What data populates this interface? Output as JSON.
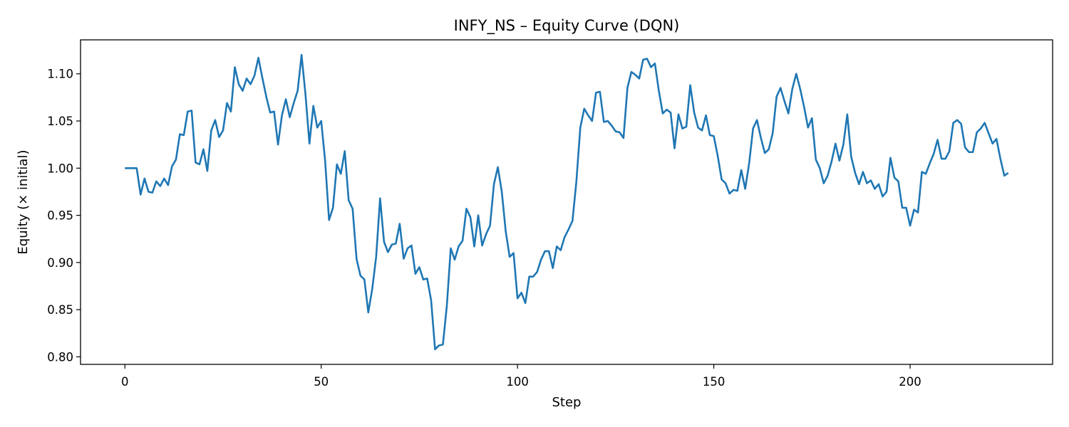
{
  "chart_data": {
    "type": "line",
    "title": "INFY_NS – Equity Curve (DQN)",
    "xlabel": "Step",
    "ylabel": "Equity (× initial)",
    "xlim": [
      -11.3,
      236.3
    ],
    "ylim": [
      0.792,
      1.136
    ],
    "xticks": [
      0,
      50,
      100,
      150,
      200
    ],
    "yticks": [
      0.8,
      0.85,
      0.9,
      0.95,
      1.0,
      1.05,
      1.1
    ],
    "grid": false,
    "legend": "none",
    "series": [
      {
        "color": "#1f77b4",
        "x": [
          0,
          1,
          2,
          3,
          4,
          5,
          6,
          7,
          8,
          9,
          10,
          11,
          12,
          13,
          14,
          15,
          16,
          17,
          18,
          19,
          20,
          21,
          22,
          23,
          24,
          25,
          26,
          27,
          28,
          29,
          30,
          31,
          32,
          33,
          34,
          35,
          36,
          37,
          38,
          39,
          40,
          41,
          42,
          43,
          44,
          45,
          46,
          47,
          48,
          49,
          50,
          51,
          52,
          53,
          54,
          55,
          56,
          57,
          58,
          59,
          60,
          61,
          62,
          63,
          64,
          65,
          66,
          67,
          68,
          69,
          70,
          71,
          72,
          73,
          74,
          75,
          76,
          77,
          78,
          79,
          80,
          81,
          82,
          83,
          84,
          85,
          86,
          87,
          88,
          89,
          90,
          91,
          92,
          93,
          94,
          95,
          96,
          97,
          98,
          99,
          100,
          101,
          102,
          103,
          104,
          105,
          106,
          107,
          108,
          109,
          110,
          111,
          112,
          113,
          114,
          115,
          116,
          117,
          118,
          119,
          120,
          121,
          122,
          123,
          124,
          125,
          126,
          127,
          128,
          129,
          130,
          131,
          132,
          133,
          134,
          135,
          136,
          137,
          138,
          139,
          140,
          141,
          142,
          143,
          144,
          145,
          146,
          147,
          148,
          149,
          150,
          151,
          152,
          153,
          154,
          155,
          156,
          157,
          158,
          159,
          160,
          161,
          162,
          163,
          164,
          165,
          166,
          167,
          168,
          169,
          170,
          171,
          172,
          173,
          174,
          175,
          176,
          177,
          178,
          179,
          180,
          181,
          182,
          183,
          184,
          185,
          186,
          187,
          188,
          189,
          190,
          191,
          192,
          193,
          194,
          195,
          196,
          197,
          198,
          199,
          200,
          201,
          202,
          203,
          204,
          205,
          206,
          207,
          208,
          209,
          210,
          211,
          212,
          213,
          214,
          215,
          216,
          217,
          218,
          219,
          220,
          221,
          222,
          223,
          224,
          225
        ],
        "values": [
          1.0,
          1.0,
          1.0,
          1.0,
          0.972,
          0.989,
          0.975,
          0.974,
          0.986,
          0.981,
          0.989,
          0.982,
          1.002,
          1.009,
          1.036,
          1.035,
          1.06,
          1.061,
          1.006,
          1.004,
          1.02,
          0.997,
          1.04,
          1.051,
          1.033,
          1.04,
          1.069,
          1.06,
          1.107,
          1.089,
          1.082,
          1.095,
          1.089,
          1.098,
          1.117,
          1.096,
          1.076,
          1.059,
          1.06,
          1.025,
          1.056,
          1.073,
          1.054,
          1.069,
          1.082,
          1.12,
          1.078,
          1.026,
          1.066,
          1.043,
          1.05,
          1.008,
          0.945,
          0.958,
          1.004,
          0.994,
          1.018,
          0.966,
          0.957,
          0.904,
          0.886,
          0.882,
          0.847,
          0.872,
          0.906,
          0.968,
          0.922,
          0.911,
          0.919,
          0.92,
          0.941,
          0.904,
          0.915,
          0.918,
          0.888,
          0.895,
          0.882,
          0.883,
          0.86,
          0.808,
          0.812,
          0.813,
          0.854,
          0.915,
          0.903,
          0.917,
          0.923,
          0.957,
          0.948,
          0.917,
          0.95,
          0.918,
          0.93,
          0.939,
          0.983,
          1.001,
          0.975,
          0.933,
          0.906,
          0.91,
          0.862,
          0.868,
          0.857,
          0.885,
          0.885,
          0.89,
          0.903,
          0.912,
          0.912,
          0.894,
          0.917,
          0.913,
          0.927,
          0.935,
          0.944,
          0.986,
          1.043,
          1.063,
          1.056,
          1.05,
          1.08,
          1.081,
          1.049,
          1.05,
          1.045,
          1.039,
          1.038,
          1.032,
          1.085,
          1.102,
          1.099,
          1.095,
          1.115,
          1.116,
          1.107,
          1.111,
          1.082,
          1.058,
          1.062,
          1.059,
          1.021,
          1.057,
          1.042,
          1.044,
          1.088,
          1.059,
          1.043,
          1.04,
          1.056,
          1.035,
          1.034,
          1.013,
          0.988,
          0.984,
          0.973,
          0.977,
          0.976,
          0.998,
          0.978,
          1.005,
          1.042,
          1.051,
          1.032,
          1.016,
          1.02,
          1.037,
          1.076,
          1.085,
          1.071,
          1.058,
          1.084,
          1.1,
          1.084,
          1.065,
          1.043,
          1.053,
          1.009,
          1.0,
          0.984,
          0.992,
          1.007,
          1.026,
          1.008,
          1.025,
          1.057,
          1.012,
          0.995,
          0.983,
          0.996,
          0.984,
          0.987,
          0.978,
          0.983,
          0.97,
          0.975,
          1.011,
          0.99,
          0.986,
          0.958,
          0.958,
          0.939,
          0.956,
          0.953,
          0.996,
          0.994,
          1.005,
          1.015,
          1.03,
          1.01,
          1.01,
          1.018,
          1.048,
          1.051,
          1.047,
          1.022,
          1.017,
          1.017,
          1.038,
          1.042,
          1.048,
          1.037,
          1.026,
          1.031,
          1.01,
          0.992,
          0.995
        ]
      }
    ]
  }
}
